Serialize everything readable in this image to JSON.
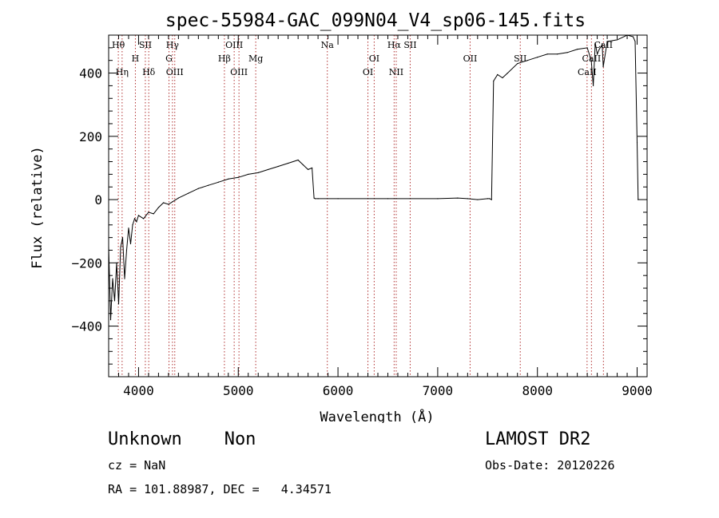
{
  "chart_data": {
    "type": "line",
    "title": "spec-55984-GAC_099N04_V4_sp06-145.fits",
    "xlabel": "Wavelength (Å)",
    "ylabel": "Flux (relative)",
    "xlim": [
      3700,
      9100
    ],
    "ylim": [
      -560,
      520
    ],
    "xticks": [
      4000,
      5000,
      6000,
      7000,
      8000,
      9000
    ],
    "yticks": [
      -400,
      -200,
      0,
      200,
      400
    ],
    "grid": false,
    "series": [
      {
        "color": "#000000",
        "x": [
          3700,
          3720,
          3740,
          3760,
          3780,
          3800,
          3820,
          3840,
          3860,
          3880,
          3900,
          3920,
          3940,
          3960,
          3980,
          4000,
          4050,
          4100,
          4150,
          4200,
          4250,
          4300,
          4400,
          4500,
          4600,
          4700,
          4800,
          4900,
          5000,
          5100,
          5200,
          5300,
          5400,
          5500,
          5600,
          5650,
          5700,
          5740,
          5760,
          5770,
          5800,
          6000,
          6500,
          7000,
          7200,
          7300,
          7400,
          7500,
          7520,
          7540,
          7560,
          7600,
          7650,
          7700,
          7800,
          7900,
          8000,
          8100,
          8200,
          8300,
          8400,
          8500,
          8540,
          8560,
          8580,
          8600,
          8620,
          8650,
          8660,
          8700,
          8800,
          8900,
          8960,
          8980,
          9000,
          9010
        ],
        "y": [
          -150,
          -380,
          -250,
          -320,
          -200,
          -330,
          -150,
          -120,
          -250,
          -160,
          -90,
          -140,
          -80,
          -60,
          -70,
          -50,
          -60,
          -40,
          -45,
          -25,
          -10,
          -15,
          5,
          20,
          35,
          45,
          55,
          65,
          70,
          80,
          85,
          95,
          105,
          115,
          125,
          110,
          95,
          100,
          5,
          3,
          3,
          3,
          3,
          3,
          5,
          3,
          0,
          3,
          3,
          0,
          375,
          395,
          385,
          400,
          430,
          440,
          450,
          460,
          460,
          465,
          475,
          480,
          440,
          360,
          495,
          460,
          475,
          490,
          420,
          500,
          505,
          520,
          515,
          500,
          180,
          0
        ]
      }
    ],
    "spectral_lines": [
      {
        "label": "Hθ",
        "x": 3797,
        "row": 0
      },
      {
        "label": "Hη",
        "x": 3835,
        "row": 2
      },
      {
        "label": "H",
        "x": 3968,
        "row": 1
      },
      {
        "label": "SII",
        "x": 4068,
        "row": 0
      },
      {
        "label": "Hδ",
        "x": 4102,
        "row": 2
      },
      {
        "label": "Hγ",
        "x": 4340,
        "row": 0
      },
      {
        "label": "G",
        "x": 4305,
        "row": 1
      },
      {
        "label": "OIII",
        "x": 4363,
        "row": 2
      },
      {
        "label": "Hβ",
        "x": 4861,
        "row": 1
      },
      {
        "label": "OIII",
        "x": 4959,
        "row": 0
      },
      {
        "label": "OIII",
        "x": 5007,
        "row": 2
      },
      {
        "label": "Mg",
        "x": 5175,
        "row": 1
      },
      {
        "label": "Na",
        "x": 5893,
        "row": 0
      },
      {
        "label": "OI",
        "x": 6300,
        "row": 2
      },
      {
        "label": "OI",
        "x": 6363,
        "row": 1
      },
      {
        "label": "Hα",
        "x": 6563,
        "row": 0
      },
      {
        "label": "NII",
        "x": 6584,
        "row": 2
      },
      {
        "label": "SII",
        "x": 6724,
        "row": 0
      },
      {
        "label": "OII",
        "x": 7325,
        "row": 1
      },
      {
        "label": "SII",
        "x": 7828,
        "row": 1
      },
      {
        "label": "CaII",
        "x": 8498,
        "row": 2
      },
      {
        "label": "CaII",
        "x": 8542,
        "row": 1
      },
      {
        "label": "CaII",
        "x": 8662,
        "row": 0
      }
    ]
  },
  "info": {
    "classification": "Unknown    Non",
    "survey": "LAMOST DR2",
    "redshift": "cz = NaN",
    "obs_date": "Obs-Date: 20120226",
    "coords": "RA = 101.88987, DEC =   4.34571"
  }
}
